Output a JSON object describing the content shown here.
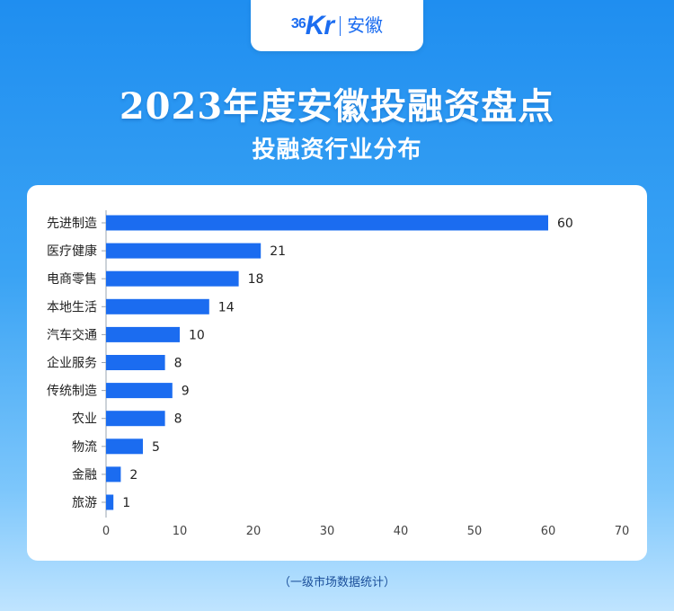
{
  "logo": {
    "mark_small": "36",
    "mark_large": "Kr",
    "region": "安徽"
  },
  "header": {
    "title": "2023年度安徽投融资盘点",
    "subtitle": "投融资行业分布"
  },
  "footnote": "（一级市场数据统计）",
  "colors": {
    "bar": "#1b6cf0",
    "axis": "#9aa4b1",
    "label": "#222222",
    "tick": "#444444"
  },
  "chart_data": {
    "type": "bar",
    "orientation": "horizontal",
    "categories": [
      "先进制造",
      "医疗健康",
      "电商零售",
      "本地生活",
      "汽车交通",
      "企业服务",
      "传统制造",
      "农业",
      "物流",
      "金融",
      "旅游"
    ],
    "values": [
      60,
      21,
      18,
      14,
      10,
      8,
      9,
      8,
      5,
      2,
      1
    ],
    "xlim": [
      0,
      70
    ],
    "xticks": [
      0,
      10,
      20,
      30,
      40,
      50,
      60,
      70
    ],
    "grid": false,
    "legend": "none",
    "data_labels": true
  }
}
